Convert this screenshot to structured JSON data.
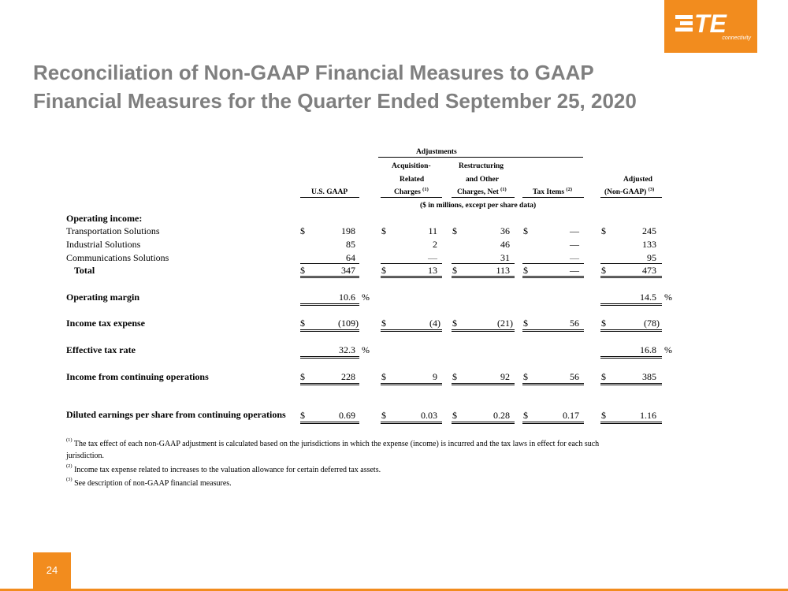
{
  "logo": {
    "text": "TE",
    "sub": "connectivity"
  },
  "title": {
    "line1": "Reconciliation of Non-GAAP Financial Measures to GAAP",
    "line2": "Financial Measures for the Quarter Ended September 25, 2020"
  },
  "header": {
    "adjustments": "Adjustments",
    "gaap": "U.S. GAAP",
    "acq1": "Acquisition-",
    "acq2": "Related",
    "acq3": "Charges",
    "acq_note": "(1)",
    "res1": "Restructuring",
    "res2": "and Other",
    "res3": "Charges, Net",
    "res_note": "(1)",
    "tax": "Tax Items",
    "tax_note": "(2)",
    "adj1": "Adjusted",
    "adj2": "(Non-GAAP)",
    "adj_note": "(3)",
    "units": "($ in millions, except per share data)"
  },
  "rows": {
    "op_income": {
      "label": "Operating income:"
    },
    "transport": {
      "label": "Transportation Solutions",
      "v": [
        "198",
        "11",
        "36",
        "—",
        "245"
      ]
    },
    "industrial": {
      "label": "Industrial Solutions",
      "v": [
        "85",
        "2",
        "46",
        "—",
        "133"
      ]
    },
    "comms": {
      "label": "Communications Solutions",
      "v": [
        "64",
        "—",
        "31",
        "—",
        "95"
      ]
    },
    "total": {
      "label": "Total",
      "v": [
        "347",
        "13",
        "113",
        "—",
        "473"
      ]
    },
    "margin": {
      "label": "Operating margin",
      "v": [
        "10.6",
        "14.5"
      ]
    },
    "taxexp": {
      "label": "Income tax expense",
      "v": [
        "(109)",
        "(4)",
        "(21)",
        "56",
        "(78)"
      ]
    },
    "etr": {
      "label": "Effective tax rate",
      "v": [
        "32.3",
        "16.8"
      ]
    },
    "cont": {
      "label": "Income from continuing operations",
      "v": [
        "228",
        "9",
        "92",
        "56",
        "385"
      ]
    },
    "eps": {
      "label": "Diluted earnings per share from continuing operations",
      "v": [
        "0.69",
        "0.03",
        "0.28",
        "0.17",
        "1.16"
      ]
    }
  },
  "symbols": {
    "dollar": "$",
    "pct": "%"
  },
  "footnotes": {
    "n1_mark": "(1)",
    "n1a": " The tax effect of each non-GAAP adjustment is calculated based on the jurisdictions in which the expense (income) is incurred and the tax laws in effect for each such",
    "n1b": "jurisdiction.",
    "n2_mark": "(2)",
    "n2": " Income tax expense related to increases to the valuation allowance for certain deferred tax assets.",
    "n3_mark": "(3)",
    "n3": " See description of non-GAAP financial measures."
  },
  "page_number": "24",
  "colors": {
    "brand": "#f28c1e",
    "title": "#7f7f7f"
  }
}
